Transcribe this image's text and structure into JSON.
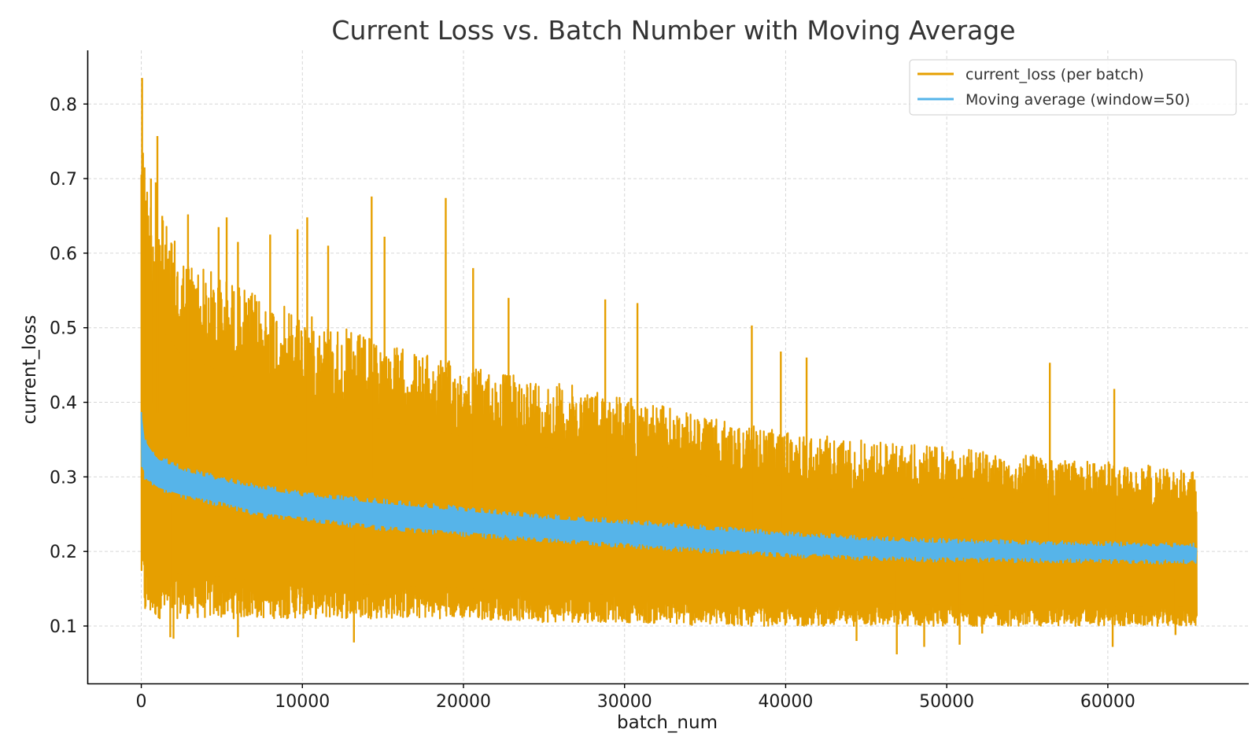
{
  "chart_data": {
    "type": "line",
    "title": "Current Loss vs. Batch Number with Moving Average",
    "xlabel": "batch_num",
    "ylabel": "current_loss",
    "xlim": [
      -3300,
      68700
    ],
    "ylim": [
      0.023,
      0.872
    ],
    "xticks": [
      0,
      10000,
      20000,
      30000,
      40000,
      50000,
      60000
    ],
    "yticks": [
      0.1,
      0.2,
      0.3,
      0.4,
      0.5,
      0.6,
      0.7,
      0.8
    ],
    "xtick_labels": [
      "0",
      "10000",
      "20000",
      "30000",
      "40000",
      "50000",
      "60000"
    ],
    "ytick_labels": [
      "0.1",
      "0.2",
      "0.3",
      "0.4",
      "0.5",
      "0.6",
      "0.7",
      "0.8"
    ],
    "grid": true,
    "legend_position": "top-right",
    "series": [
      {
        "name": "current_loss (per batch)",
        "color": "#E69F00",
        "style": "noisy band",
        "x": [
          0,
          200,
          1000,
          2500,
          5000,
          7500,
          10000,
          15000,
          20000,
          25000,
          30000,
          35000,
          40000,
          45000,
          50000,
          55000,
          60000,
          65500
        ],
        "upper": [
          0.83,
          0.71,
          0.66,
          0.6,
          0.57,
          0.54,
          0.52,
          0.48,
          0.45,
          0.43,
          0.41,
          0.38,
          0.36,
          0.35,
          0.34,
          0.33,
          0.32,
          0.31
        ],
        "lower": [
          0.15,
          0.11,
          0.11,
          0.11,
          0.11,
          0.11,
          0.11,
          0.11,
          0.11,
          0.105,
          0.105,
          0.1,
          0.1,
          0.1,
          0.1,
          0.1,
          0.1,
          0.1
        ],
        "spikes": [
          [
            50,
            0.835
          ],
          [
            200,
            0.715
          ],
          [
            600,
            0.7
          ],
          [
            900,
            0.695
          ],
          [
            1000,
            0.757
          ],
          [
            1300,
            0.65
          ],
          [
            2900,
            0.652
          ],
          [
            4800,
            0.635
          ],
          [
            5300,
            0.648
          ],
          [
            6000,
            0.615
          ],
          [
            8000,
            0.625
          ],
          [
            9700,
            0.632
          ],
          [
            10300,
            0.648
          ],
          [
            11600,
            0.61
          ],
          [
            14300,
            0.676
          ],
          [
            15100,
            0.622
          ],
          [
            18900,
            0.674
          ],
          [
            20600,
            0.58
          ],
          [
            22800,
            0.54
          ],
          [
            28800,
            0.538
          ],
          [
            30800,
            0.533
          ],
          [
            37900,
            0.503
          ],
          [
            39700,
            0.468
          ],
          [
            41300,
            0.46
          ],
          [
            56400,
            0.453
          ],
          [
            60400,
            0.418
          ],
          [
            1800,
            0.085
          ],
          [
            2000,
            0.083
          ],
          [
            6000,
            0.085
          ],
          [
            13200,
            0.078
          ],
          [
            44400,
            0.08
          ],
          [
            46900,
            0.062
          ],
          [
            48600,
            0.072
          ],
          [
            50800,
            0.075
          ],
          [
            52200,
            0.09
          ],
          [
            60300,
            0.072
          ],
          [
            64200,
            0.088
          ]
        ]
      },
      {
        "name": "Moving average (window=50)",
        "color": "#56B4E9",
        "style": "band",
        "x": [
          0,
          100,
          500,
          1000,
          2500,
          5000,
          7500,
          10000,
          15000,
          20000,
          25000,
          30000,
          35000,
          40000,
          45000,
          50000,
          55000,
          60000,
          65500
        ],
        "upper": [
          0.395,
          0.36,
          0.345,
          0.33,
          0.315,
          0.3,
          0.29,
          0.28,
          0.27,
          0.26,
          0.25,
          0.243,
          0.235,
          0.227,
          0.221,
          0.217,
          0.215,
          0.213,
          0.211
        ],
        "lower": [
          0.32,
          0.3,
          0.29,
          0.28,
          0.27,
          0.26,
          0.245,
          0.24,
          0.228,
          0.22,
          0.212,
          0.205,
          0.198,
          0.192,
          0.188,
          0.186,
          0.185,
          0.184,
          0.183
        ]
      }
    ]
  }
}
